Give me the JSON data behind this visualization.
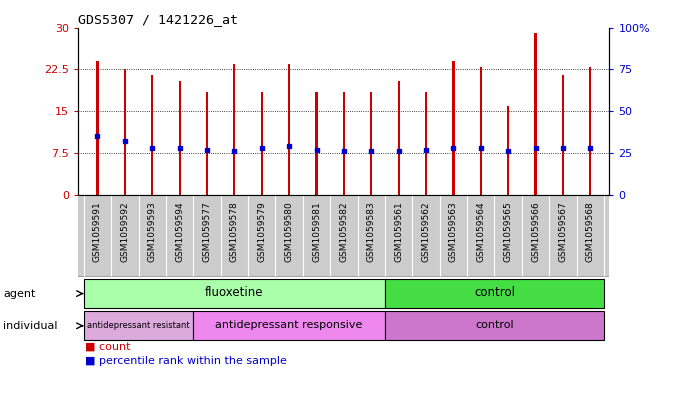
{
  "title": "GDS5307 / 1421226_at",
  "samples": [
    "GSM1059591",
    "GSM1059592",
    "GSM1059593",
    "GSM1059594",
    "GSM1059577",
    "GSM1059578",
    "GSM1059579",
    "GSM1059580",
    "GSM1059581",
    "GSM1059582",
    "GSM1059583",
    "GSM1059561",
    "GSM1059562",
    "GSM1059563",
    "GSM1059564",
    "GSM1059565",
    "GSM1059566",
    "GSM1059567",
    "GSM1059568"
  ],
  "count_values": [
    24.0,
    22.5,
    21.5,
    20.5,
    18.5,
    23.5,
    18.5,
    23.5,
    18.5,
    18.5,
    18.5,
    20.5,
    18.5,
    24.0,
    23.0,
    16.0,
    29.0,
    21.5,
    23.0
  ],
  "percentile_values": [
    35,
    32,
    28,
    28,
    27,
    26,
    28,
    29,
    27,
    26,
    26,
    26,
    27,
    28,
    28,
    26,
    28,
    28,
    28
  ],
  "bar_color": "#CC0000",
  "dot_color": "#0000CC",
  "ylim_left": [
    0,
    30
  ],
  "ylim_right": [
    0,
    100
  ],
  "yticks_left": [
    0,
    7.5,
    15,
    22.5,
    30
  ],
  "yticks_right": [
    0,
    25,
    50,
    75,
    100
  ],
  "ytick_labels_right": [
    "0",
    "25",
    "50",
    "75",
    "100%"
  ],
  "grid_values": [
    7.5,
    15,
    22.5
  ],
  "agent_groups": [
    {
      "label": "fluoxetine",
      "start": 0,
      "end": 10,
      "color": "#AAFFAA"
    },
    {
      "label": "control",
      "start": 11,
      "end": 18,
      "color": "#44DD44"
    }
  ],
  "individual_groups": [
    {
      "label": "antidepressant resistant",
      "start": 0,
      "end": 3,
      "color": "#DDAADD"
    },
    {
      "label": "antidepressant responsive",
      "start": 4,
      "end": 10,
      "color": "#EE88EE"
    },
    {
      "label": "control",
      "start": 11,
      "end": 18,
      "color": "#CC77CC"
    }
  ],
  "legend_count_color": "#CC0000",
  "legend_dot_color": "#0000CC",
  "bar_width": 0.08,
  "xtick_bg_color": "#CCCCCC"
}
